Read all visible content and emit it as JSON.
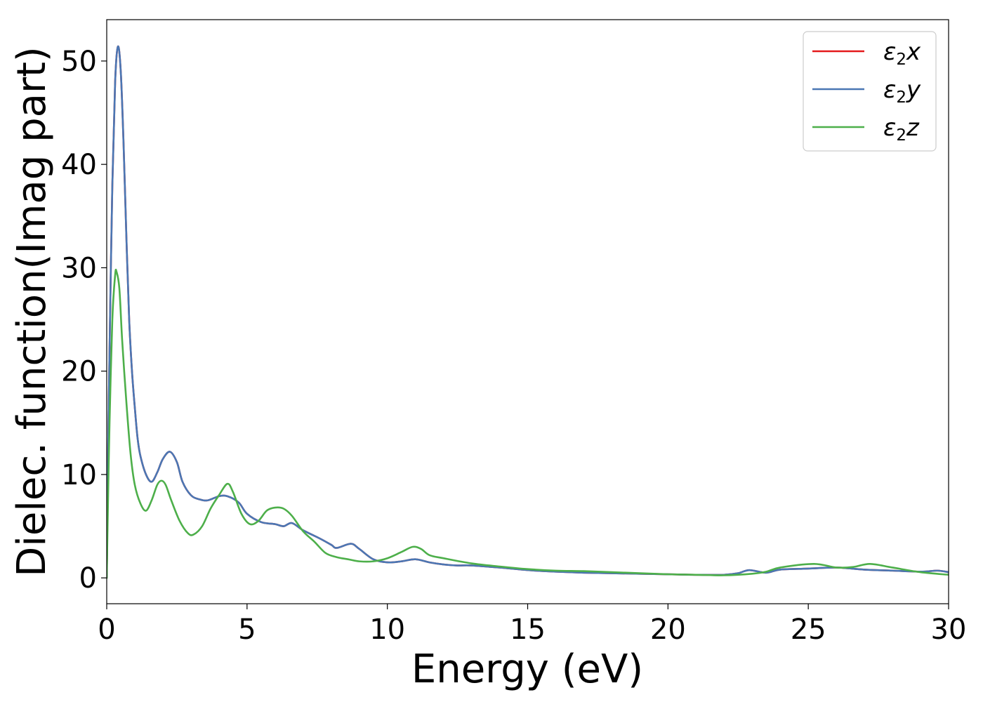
{
  "chart_data": {
    "type": "line",
    "xlabel": "Energy (eV)",
    "ylabel": "Dielec. function(Imag part)",
    "xlim": [
      0,
      30
    ],
    "ylim": [
      -2.5,
      54
    ],
    "xticks": [
      0,
      5,
      10,
      15,
      20,
      25,
      30
    ],
    "yticks": [
      0,
      10,
      20,
      30,
      40,
      50
    ],
    "grid": false,
    "legend_position": "top-right",
    "series": [
      {
        "name": "ε₂x",
        "legend": {
          "sym": "ε",
          "sub": "2",
          "var": "x"
        },
        "color": "#e41a1c",
        "x": [
          0,
          0.05,
          0.1,
          0.2,
          0.3,
          0.4,
          0.5,
          0.6,
          0.7,
          0.8,
          0.9,
          1.0,
          1.1,
          1.2,
          1.4,
          1.6,
          1.8,
          2.0,
          2.25,
          2.5,
          2.7,
          3.0,
          3.3,
          3.6,
          4.0,
          4.3,
          4.7,
          5.0,
          5.5,
          6.0,
          6.3,
          6.6,
          7.0,
          7.6,
          8.0,
          8.2,
          8.7,
          9.0,
          9.5,
          10.0,
          10.5,
          11.0,
          11.5,
          12.0,
          12.5,
          13.0,
          14.0,
          15.0,
          16.0,
          17.0,
          18.0,
          19.0,
          20.0,
          21.0,
          22.0,
          22.5,
          22.9,
          23.5,
          24.0,
          25.0,
          26.0,
          27.0,
          28.0,
          29.0,
          29.6,
          30.0
        ],
        "y": [
          0,
          12,
          22,
          38,
          48,
          51.4,
          49,
          42,
          33,
          25,
          20,
          16.5,
          13.5,
          11.8,
          10,
          9.3,
          10.2,
          11.5,
          12.2,
          11.2,
          9.3,
          8,
          7.6,
          7.5,
          7.9,
          7.9,
          7.3,
          6.2,
          5.4,
          5.2,
          5.0,
          5.3,
          4.6,
          3.8,
          3.2,
          2.9,
          3.3,
          2.8,
          1.8,
          1.5,
          1.6,
          1.8,
          1.5,
          1.3,
          1.2,
          1.2,
          1.0,
          0.75,
          0.6,
          0.5,
          0.45,
          0.4,
          0.35,
          0.3,
          0.3,
          0.45,
          0.75,
          0.5,
          0.8,
          0.9,
          1.0,
          0.8,
          0.7,
          0.6,
          0.7,
          0.55
        ]
      },
      {
        "name": "ε₂y",
        "legend": {
          "sym": "ε",
          "sub": "2",
          "var": "y"
        },
        "color": "#4a77b4",
        "x": [
          0,
          0.05,
          0.1,
          0.2,
          0.3,
          0.4,
          0.5,
          0.6,
          0.7,
          0.8,
          0.9,
          1.0,
          1.1,
          1.2,
          1.4,
          1.6,
          1.8,
          2.0,
          2.25,
          2.5,
          2.7,
          3.0,
          3.3,
          3.6,
          4.0,
          4.3,
          4.7,
          5.0,
          5.5,
          6.0,
          6.3,
          6.6,
          7.0,
          7.6,
          8.0,
          8.2,
          8.7,
          9.0,
          9.5,
          10.0,
          10.5,
          11.0,
          11.5,
          12.0,
          12.5,
          13.0,
          14.0,
          15.0,
          16.0,
          17.0,
          18.0,
          19.0,
          20.0,
          21.0,
          22.0,
          22.5,
          22.9,
          23.5,
          24.0,
          25.0,
          26.0,
          27.0,
          28.0,
          29.0,
          29.6,
          30.0
        ],
        "y": [
          0,
          12,
          22,
          38,
          48,
          51.4,
          49,
          42,
          33,
          25,
          20,
          16.5,
          13.5,
          11.8,
          10,
          9.3,
          10.2,
          11.5,
          12.2,
          11.2,
          9.3,
          8,
          7.6,
          7.5,
          7.9,
          7.9,
          7.3,
          6.2,
          5.4,
          5.2,
          5.0,
          5.3,
          4.6,
          3.8,
          3.2,
          2.9,
          3.3,
          2.8,
          1.8,
          1.5,
          1.6,
          1.8,
          1.5,
          1.3,
          1.2,
          1.2,
          1.0,
          0.75,
          0.6,
          0.5,
          0.45,
          0.4,
          0.35,
          0.3,
          0.3,
          0.45,
          0.75,
          0.5,
          0.8,
          0.9,
          1.0,
          0.8,
          0.7,
          0.6,
          0.7,
          0.55
        ]
      },
      {
        "name": "ε₂z",
        "legend": {
          "sym": "ε",
          "sub": "2",
          "var": "z"
        },
        "color": "#4daf4a",
        "x": [
          0,
          0.05,
          0.1,
          0.2,
          0.3,
          0.35,
          0.45,
          0.55,
          0.7,
          0.85,
          1.0,
          1.2,
          1.4,
          1.6,
          1.8,
          1.95,
          2.1,
          2.3,
          2.6,
          2.9,
          3.1,
          3.4,
          3.7,
          4.0,
          4.3,
          4.5,
          4.8,
          5.1,
          5.4,
          5.7,
          6.0,
          6.3,
          6.6,
          7.0,
          7.4,
          7.8,
          8.2,
          8.6,
          9.0,
          9.5,
          10.0,
          10.5,
          10.9,
          11.2,
          11.5,
          12.0,
          13.0,
          14.0,
          15.0,
          16.0,
          17.0,
          18.0,
          19.0,
          20.0,
          21.0,
          22.0,
          23.0,
          23.5,
          24.0,
          25.2,
          26.0,
          26.6,
          27.2,
          28.0,
          29.0,
          30.0
        ],
        "y": [
          0,
          8,
          15,
          25,
          29.3,
          29.6,
          28,
          23,
          17,
          12,
          9,
          7.2,
          6.5,
          7.5,
          9.0,
          9.4,
          9.0,
          7.5,
          5.5,
          4.3,
          4.2,
          5.0,
          6.7,
          8.0,
          9.1,
          8.3,
          6.2,
          5.2,
          5.5,
          6.5,
          6.8,
          6.7,
          6.0,
          4.5,
          3.5,
          2.4,
          2.0,
          1.8,
          1.6,
          1.6,
          1.9,
          2.5,
          3.0,
          2.8,
          2.2,
          1.9,
          1.4,
          1.1,
          0.85,
          0.7,
          0.65,
          0.55,
          0.45,
          0.35,
          0.3,
          0.25,
          0.4,
          0.6,
          1.0,
          1.35,
          1.0,
          1.05,
          1.35,
          1.0,
          0.55,
          0.3
        ]
      }
    ]
  }
}
